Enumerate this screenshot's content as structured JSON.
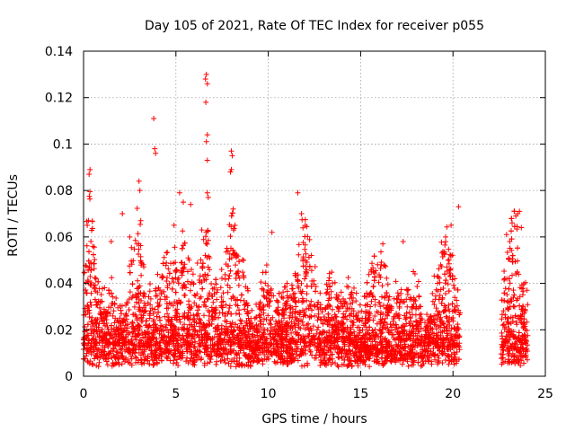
{
  "chart_data": {
    "type": "scatter",
    "title": "Day 105 of 2021, Rate Of TEC Index for receiver p055",
    "xlabel": "GPS time / hours",
    "ylabel": "ROTI / TECUs",
    "xlim": [
      0,
      25
    ],
    "ylim": [
      0,
      0.14
    ],
    "x_ticks": [
      "0",
      "5",
      "10",
      "15",
      "20",
      "25"
    ],
    "y_ticks": [
      "0",
      "0.02",
      "0.04",
      "0.06",
      "0.08",
      "0.1",
      "0.12",
      "0.14"
    ],
    "grid": true,
    "marker": "+",
    "color": "#ff0000",
    "data_gaps_hours": [
      [
        20.4,
        22.6
      ]
    ],
    "peaks": [
      {
        "x": 0.2,
        "y": 0.065
      },
      {
        "x": 0.35,
        "y": 0.089
      },
      {
        "x": 0.3,
        "y": 0.087
      },
      {
        "x": 1.5,
        "y": 0.058
      },
      {
        "x": 2.1,
        "y": 0.07
      },
      {
        "x": 2.5,
        "y": 0.06
      },
      {
        "x": 3.0,
        "y": 0.084
      },
      {
        "x": 3.05,
        "y": 0.08
      },
      {
        "x": 3.1,
        "y": 0.067
      },
      {
        "x": 3.8,
        "y": 0.111
      },
      {
        "x": 3.85,
        "y": 0.098
      },
      {
        "x": 3.9,
        "y": 0.096
      },
      {
        "x": 4.9,
        "y": 0.065
      },
      {
        "x": 5.2,
        "y": 0.079
      },
      {
        "x": 5.4,
        "y": 0.075
      },
      {
        "x": 5.8,
        "y": 0.074
      },
      {
        "x": 6.4,
        "y": 0.063
      },
      {
        "x": 6.6,
        "y": 0.128
      },
      {
        "x": 6.65,
        "y": 0.13
      },
      {
        "x": 6.7,
        "y": 0.126
      },
      {
        "x": 6.62,
        "y": 0.118
      },
      {
        "x": 6.7,
        "y": 0.104
      },
      {
        "x": 6.65,
        "y": 0.101
      },
      {
        "x": 6.7,
        "y": 0.093
      },
      {
        "x": 6.7,
        "y": 0.079
      },
      {
        "x": 6.75,
        "y": 0.077
      },
      {
        "x": 8.0,
        "y": 0.097
      },
      {
        "x": 8.05,
        "y": 0.095
      },
      {
        "x": 8.0,
        "y": 0.089
      },
      {
        "x": 7.95,
        "y": 0.088
      },
      {
        "x": 8.1,
        "y": 0.072
      },
      {
        "x": 8.2,
        "y": 0.065
      },
      {
        "x": 10.2,
        "y": 0.062
      },
      {
        "x": 11.6,
        "y": 0.079
      },
      {
        "x": 11.8,
        "y": 0.07
      },
      {
        "x": 12.0,
        "y": 0.065
      },
      {
        "x": 16.2,
        "y": 0.057
      },
      {
        "x": 17.3,
        "y": 0.058
      },
      {
        "x": 19.6,
        "y": 0.06
      },
      {
        "x": 19.9,
        "y": 0.065
      },
      {
        "x": 20.3,
        "y": 0.073
      },
      {
        "x": 22.9,
        "y": 0.061
      },
      {
        "x": 23.2,
        "y": 0.066
      },
      {
        "x": 23.4,
        "y": 0.069
      },
      {
        "x": 23.6,
        "y": 0.071
      },
      {
        "x": 23.7,
        "y": 0.064
      },
      {
        "x": 23.5,
        "y": 0.07
      }
    ]
  }
}
